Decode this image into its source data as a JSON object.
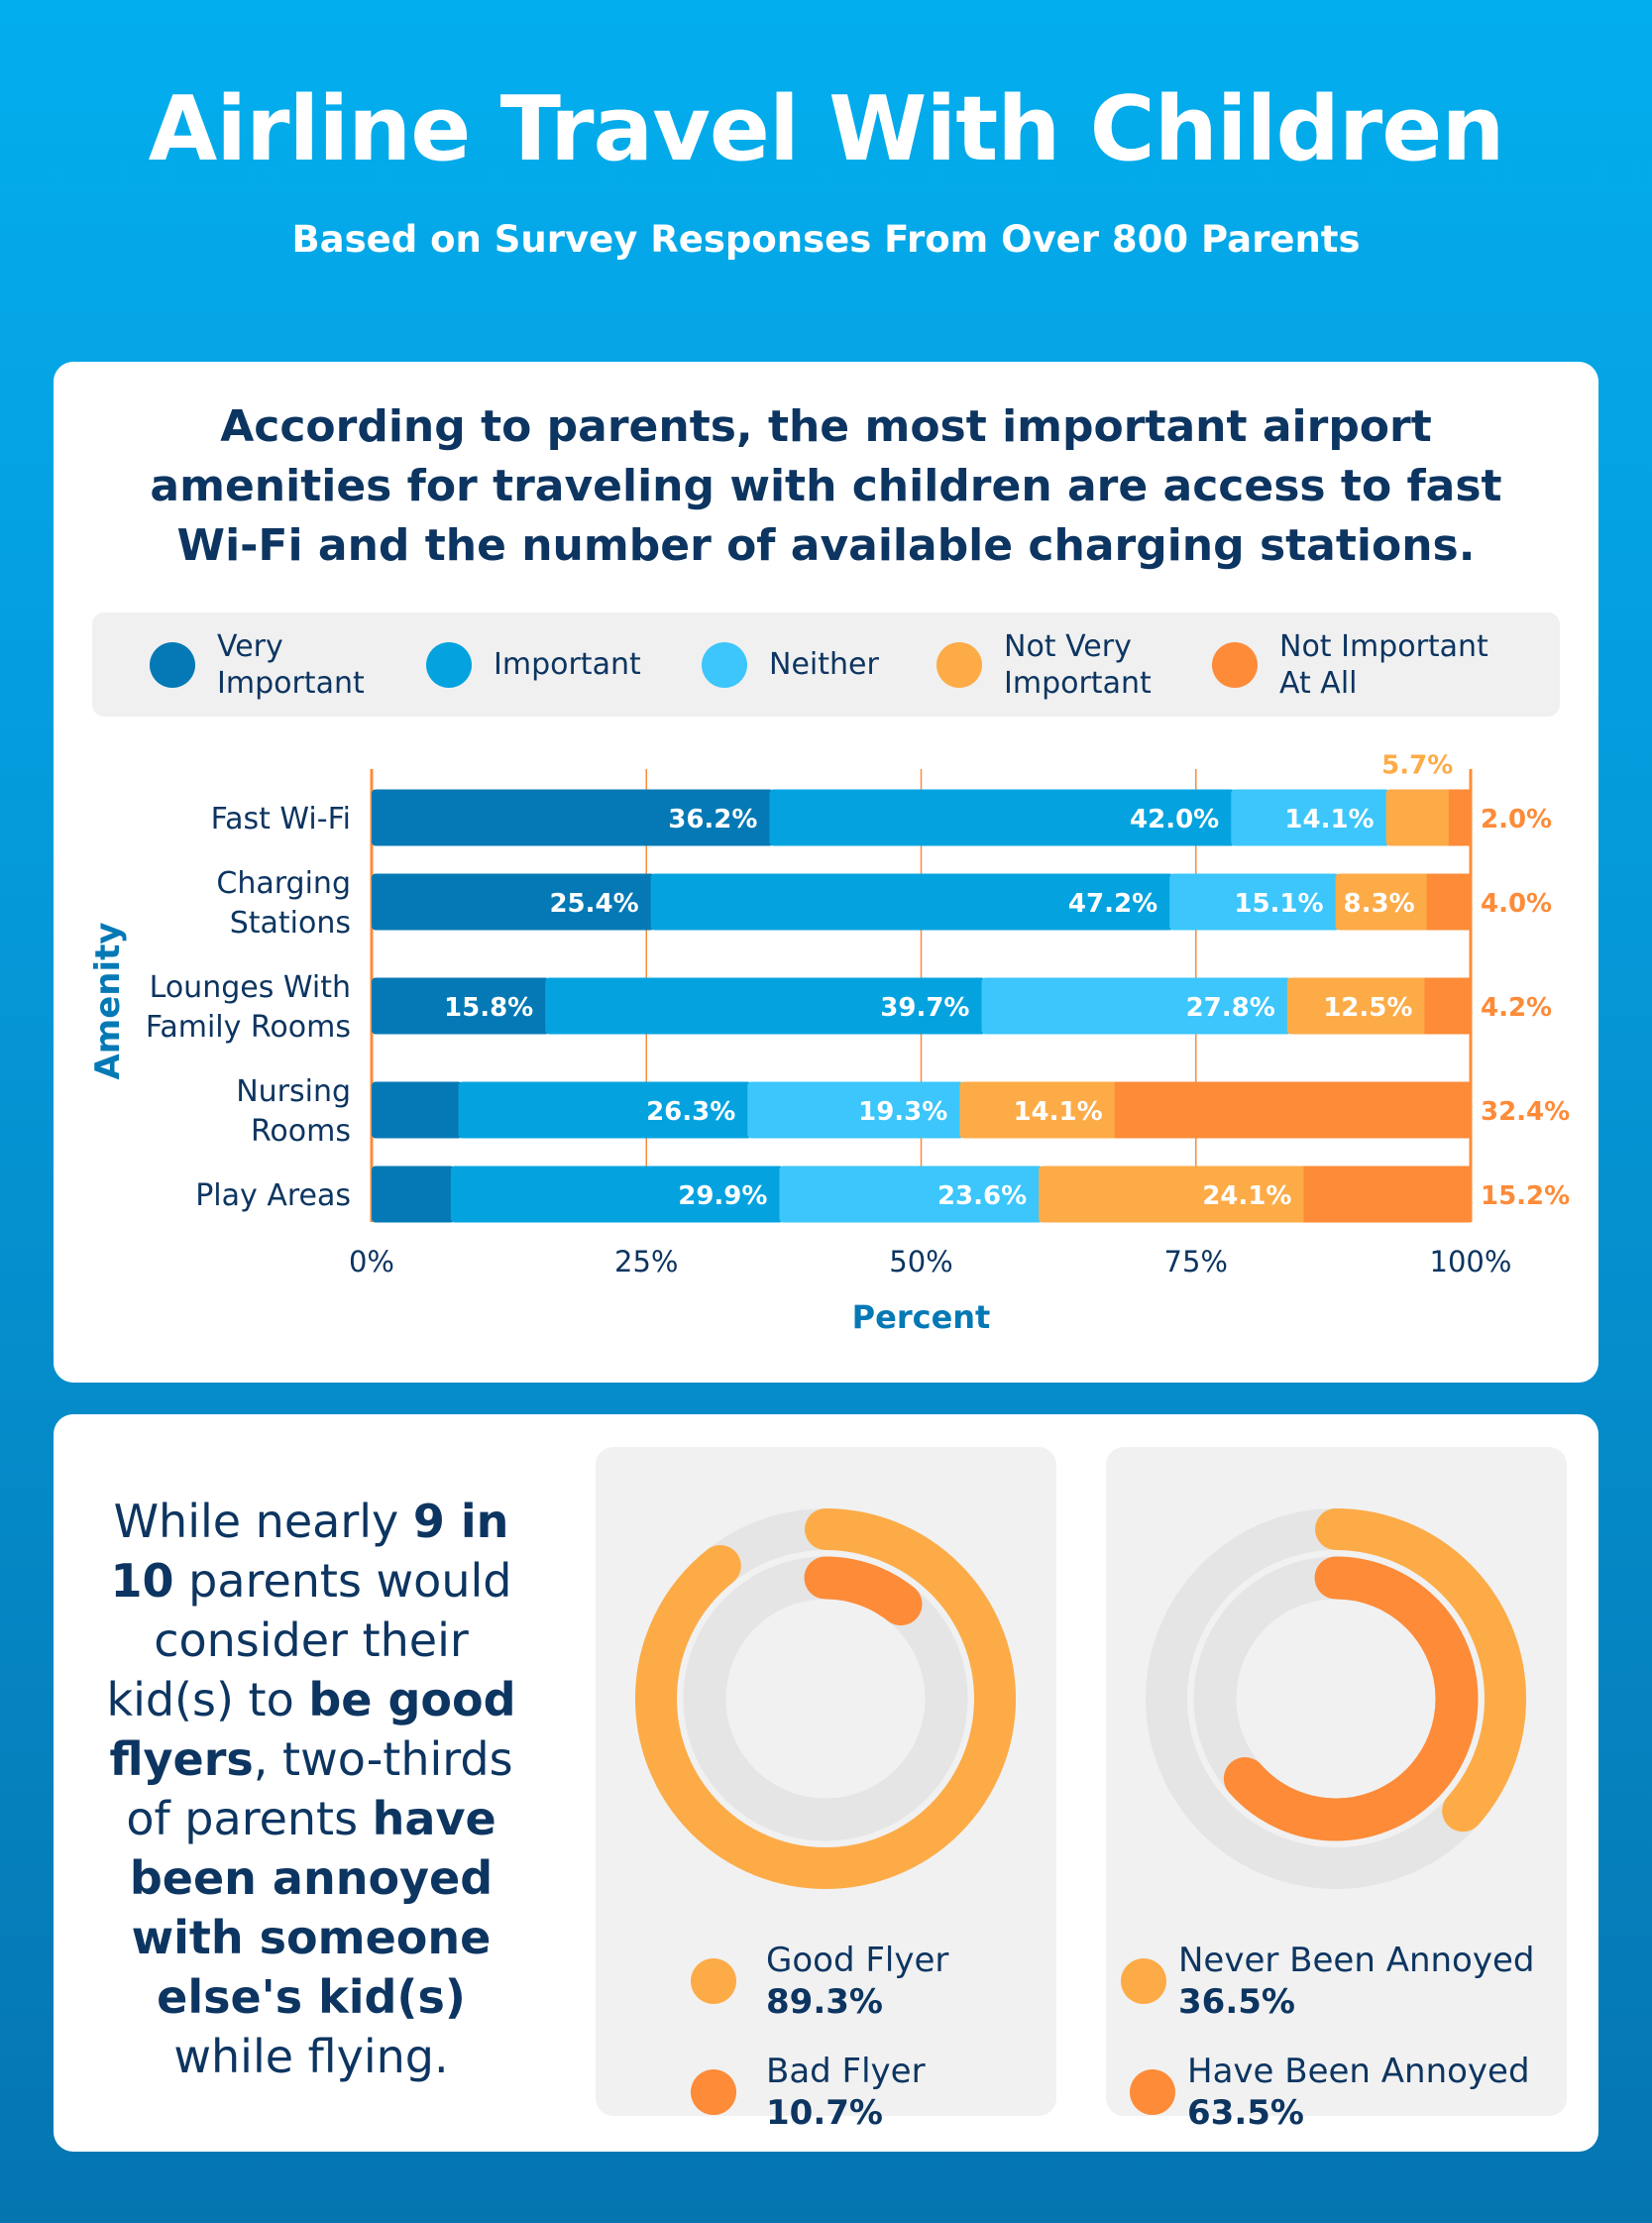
{
  "header": {
    "title": "Airline Travel With Children",
    "subtitle": "Based on Survey Responses From Over 800 Parents"
  },
  "amenities_card": {
    "headline_lines": [
      "According to parents, the most important airport",
      "amenities for traveling with children are access to fast",
      "Wi-Fi and the number of available charging stations."
    ]
  },
  "colors": {
    "very_important": "#0479b5",
    "important": "#04a3e0",
    "neither": "#3cc6fb",
    "not_very_important": "#fdab47",
    "not_important_at_all": "#fd8b38",
    "text_dark": "#0d3561",
    "gridline": "#fd8b38",
    "track": "#e5e5e5"
  },
  "chart_data": {
    "type": "bar",
    "orientation": "horizontal",
    "stacked": true,
    "categories": [
      "Fast Wi-Fi",
      "Charging\nStations",
      "Lounges With\nFamily Rooms",
      "Nursing\nRooms",
      "Play Areas"
    ],
    "series": [
      {
        "name": "Very\nImportant",
        "values": [
          36.2,
          25.4,
          15.8,
          7.9,
          7.2
        ]
      },
      {
        "name": "Important",
        "values": [
          42.0,
          47.2,
          39.7,
          26.3,
          29.9
        ]
      },
      {
        "name": "Neither",
        "values": [
          14.1,
          15.1,
          27.8,
          19.3,
          23.6
        ]
      },
      {
        "name": "Not Very\nImportant",
        "values": [
          5.7,
          8.3,
          12.5,
          14.1,
          24.1
        ]
      },
      {
        "name": "Not Important\nAt All",
        "values": [
          2.0,
          4.0,
          4.2,
          32.4,
          15.2
        ]
      }
    ],
    "xlabel": "Percent",
    "ylabel": "Amenity",
    "xlim": [
      0,
      100
    ],
    "xticks": [
      "0%",
      "25%",
      "50%",
      "75%",
      "100%"
    ],
    "legend": "top",
    "grid": true
  },
  "flyers_card": {
    "paragraph_lines": [
      [
        {
          "t": "While nearly ",
          "b": false
        },
        {
          "t": "9 in",
          "b": true
        }
      ],
      [
        {
          "t": "10",
          "b": true
        },
        {
          "t": " parents would",
          "b": false
        }
      ],
      [
        {
          "t": "consider their",
          "b": false
        }
      ],
      [
        {
          "t": "kid(s) to ",
          "b": false
        },
        {
          "t": "be good",
          "b": true
        }
      ],
      [
        {
          "t": "flyers",
          "b": true
        },
        {
          "t": ", two-thirds",
          "b": false
        }
      ],
      [
        {
          "t": "of parents ",
          "b": false
        },
        {
          "t": "have",
          "b": true
        }
      ],
      [
        {
          "t": "been annoyed",
          "b": true
        }
      ],
      [
        {
          "t": "with someone",
          "b": true
        }
      ],
      [
        {
          "t": "else's kid(s)",
          "b": true
        }
      ],
      [
        {
          "t": "while flying.",
          "b": false
        }
      ]
    ],
    "donuts": [
      {
        "outer": {
          "label": "Good Flyer",
          "value_text": "89.3%",
          "value": 89.3
        },
        "inner": {
          "label": "Bad Flyer",
          "value_text": "10.7%",
          "value": 10.7
        }
      },
      {
        "outer": {
          "label": "Never Been Annoyed",
          "value_text": "36.5%",
          "value": 36.5
        },
        "inner": {
          "label": "Have Been Annoyed",
          "value_text": "63.5%",
          "value": 63.5
        }
      }
    ]
  }
}
